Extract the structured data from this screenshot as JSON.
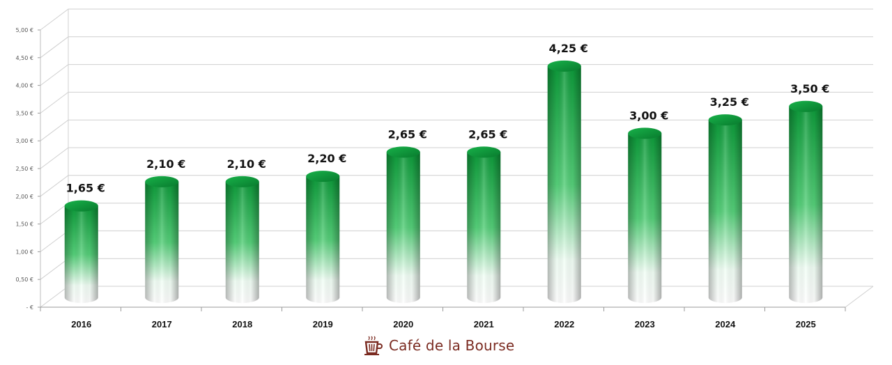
{
  "chart_data": {
    "type": "bar",
    "categories": [
      "2016",
      "2017",
      "2018",
      "2019",
      "2020",
      "2021",
      "2022",
      "2023",
      "2024",
      "2025"
    ],
    "values": [
      1.65,
      2.1,
      2.1,
      2.2,
      2.65,
      2.65,
      4.25,
      3.0,
      3.25,
      3.5
    ],
    "data_labels": [
      "1,65 €",
      "2,10 €",
      "2,10 €",
      "2,20 €",
      "2,65 €",
      "2,65 €",
      "4,25 €",
      "3,00 €",
      "3,25 €",
      "3,50 €"
    ],
    "y_ticks": [
      0,
      0.5,
      1,
      1.5,
      2,
      2.5,
      3,
      3.5,
      4,
      4.5,
      5
    ],
    "y_tick_labels": [
      "-  €",
      "0,50 €",
      "1,00 €",
      "1,50 €",
      "2,00 €",
      "2,50 €",
      "3,00 €",
      "3,50 €",
      "4,00 €",
      "4,50 €",
      "5,00 €"
    ],
    "ylim": [
      0,
      5
    ],
    "grid": true,
    "legend": "none"
  },
  "colors": {
    "bar_top": "#0d9a3a",
    "bar_mid": "#7fe09c",
    "bar_light": "#ffffff",
    "grid": "#cfcfcf",
    "brand": "#7a2a20"
  },
  "brand": {
    "text": "Café de la Bourse",
    "icon": "coffee-cup-icon"
  }
}
